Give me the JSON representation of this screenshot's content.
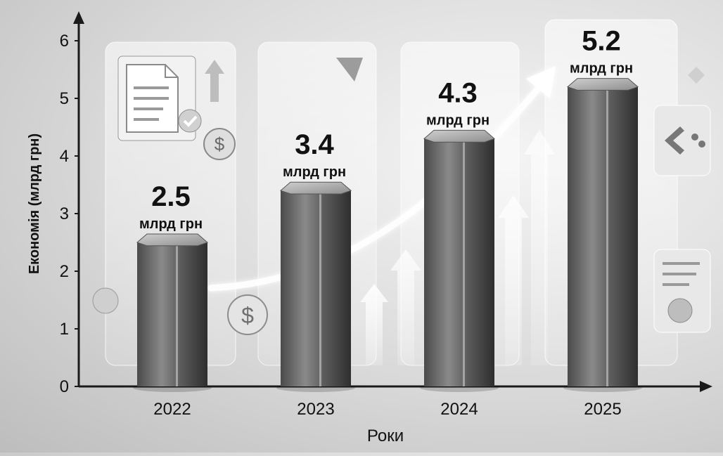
{
  "chart_data": {
    "type": "bar",
    "categories": [
      "2022",
      "2023",
      "2024",
      "2025"
    ],
    "values": [
      2.5,
      3.4,
      4.3,
      5.2
    ],
    "value_labels": [
      "2.5",
      "3.4",
      "4.3",
      "5.2"
    ],
    "value_unit": "млрд грн",
    "xlabel": "Роки",
    "ylabel": "Економія (млрд грн)",
    "yticks": [
      0,
      1,
      2,
      3,
      4,
      5,
      6
    ],
    "ylim": [
      0,
      6.3
    ],
    "grid": false,
    "legend": "none",
    "trend_arrow": true
  },
  "colors": {
    "bar_dark": "#3c3c3c",
    "bar_mid": "#7a7a7a",
    "bar_light": "#b8b8b8",
    "panel": "#ffffff",
    "axis": "#1a1a1a",
    "text": "#111111"
  },
  "decor_icons": [
    "document-icon",
    "checkmark-icon",
    "dollar-coin-icon",
    "up-arrow-icon",
    "shield-icon",
    "settings-icon",
    "phone-icon"
  ]
}
